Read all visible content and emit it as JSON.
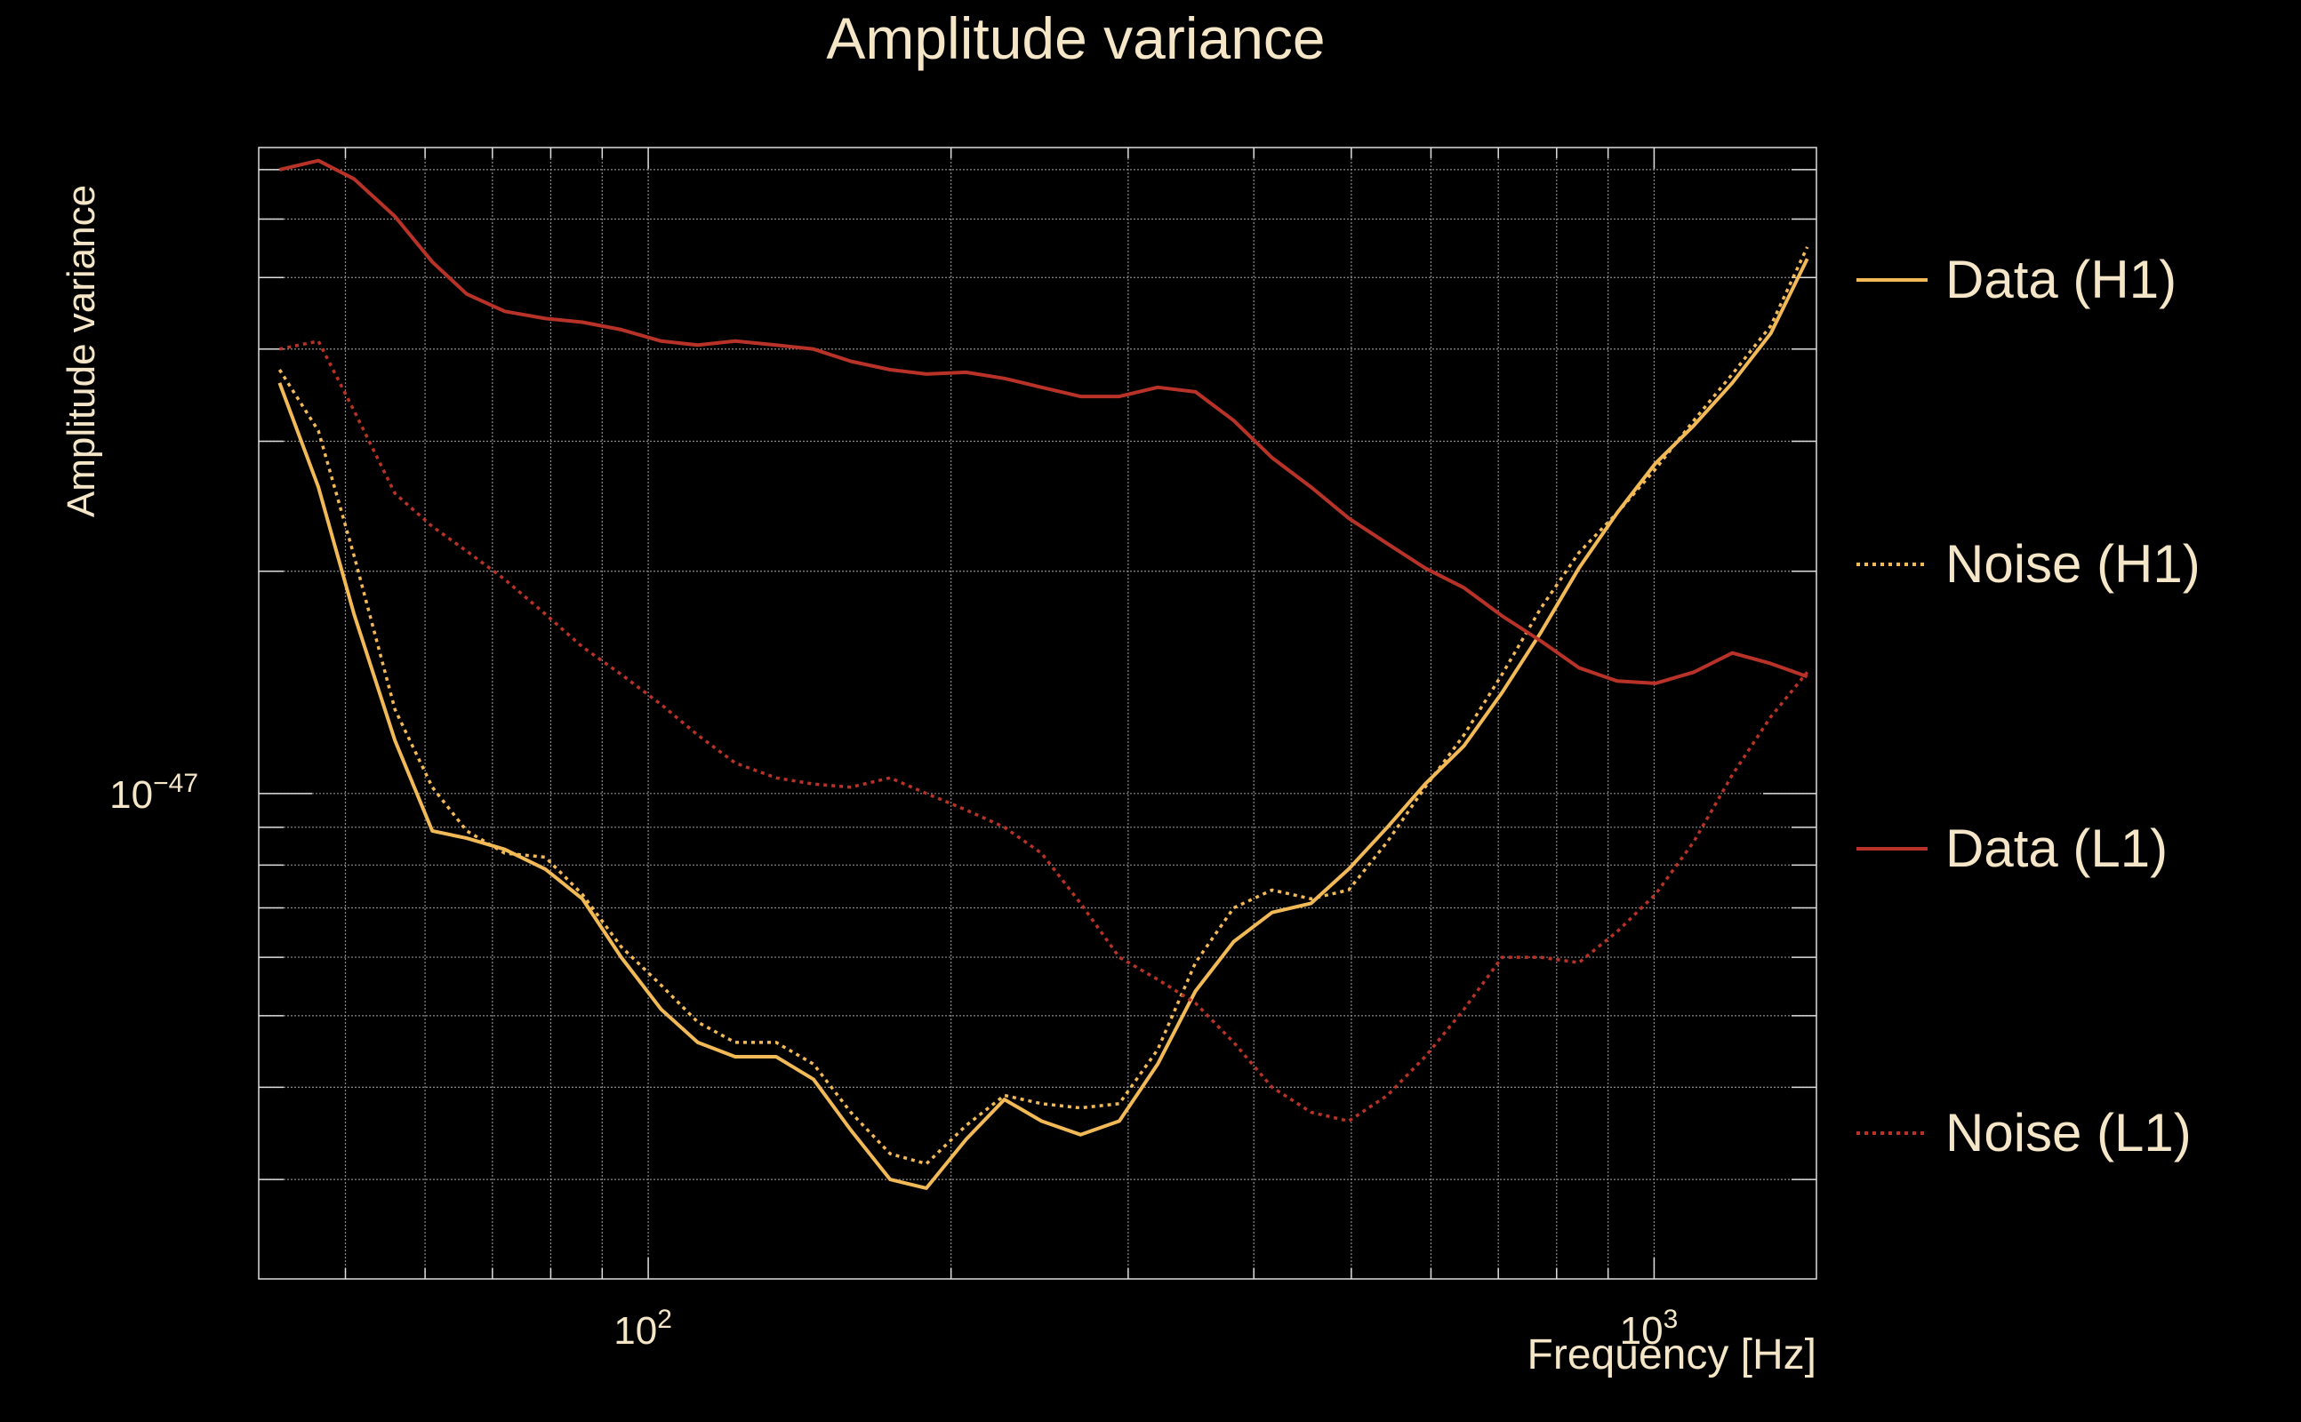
{
  "chart_data": {
    "type": "line",
    "title": "Amplitude variance",
    "xlabel": "Frequency [Hz]",
    "ylabel": "Amplitude variance",
    "x_scale": "log",
    "y_scale": "log",
    "xlim": [
      41,
      1450
    ],
    "ylim": [
      2.2e-48,
      7.5e-47
    ],
    "x_tick_labels": [
      {
        "value": 100,
        "base": "10",
        "exp": "2"
      },
      {
        "value": 1000,
        "base": "10",
        "exp": "3"
      }
    ],
    "y_tick_labels": [
      {
        "value": 1e-47,
        "base": "10",
        "exp": "−47"
      }
    ],
    "grid": true,
    "legend_position": "right",
    "x": [
      43,
      47,
      51,
      56,
      61,
      66,
      72,
      79,
      86,
      94,
      103,
      112,
      122,
      134,
      146,
      159,
      174,
      189,
      207,
      226,
      246,
      269,
      294,
      321,
      350,
      382,
      417,
      456,
      497,
      543,
      592,
      647,
      706,
      771,
      842,
      919,
      1003,
      1095,
      1196,
      1306,
      1420
    ],
    "series": [
      {
        "name": "Data (H1)",
        "color": "#f2b957",
        "dash": "solid",
        "values": [
          3.6e-47,
          2.6e-47,
          1.75e-47,
          1.18e-47,
          8.9e-48,
          8.7e-48,
          8.4e-48,
          7.9e-48,
          7.2e-48,
          6e-48,
          5.1e-48,
          4.6e-48,
          4.4e-48,
          4.4e-48,
          4.1e-48,
          3.5e-48,
          3e-48,
          2.92e-48,
          3.4e-48,
          3.85e-48,
          3.6e-48,
          3.45e-48,
          3.6e-48,
          4.3e-48,
          5.4e-48,
          6.3e-48,
          6.9e-48,
          7.1e-48,
          7.9e-48,
          9e-48,
          1.03e-47,
          1.16e-47,
          1.37e-47,
          1.65e-47,
          2.02e-47,
          2.4e-47,
          2.8e-47,
          3.15e-47,
          3.6e-47,
          4.2e-47,
          5.3e-47
        ],
        "legend_style": "solid"
      },
      {
        "name": "Noise (H1)",
        "color": "#f2b957",
        "dash": "dotted",
        "values": [
          3.75e-47,
          3.1e-47,
          2.1e-47,
          1.3e-47,
          1.02e-47,
          8.9e-48,
          8.3e-48,
          8.2e-48,
          7.3e-48,
          6.2e-48,
          5.5e-48,
          4.9e-48,
          4.6e-48,
          4.6e-48,
          4.3e-48,
          3.7e-48,
          3.25e-48,
          3.15e-48,
          3.55e-48,
          3.9e-48,
          3.8e-48,
          3.75e-48,
          3.8e-48,
          4.5e-48,
          5.9e-48,
          7e-48,
          7.4e-48,
          7.2e-48,
          7.4e-48,
          8.6e-48,
          1.02e-47,
          1.2e-47,
          1.45e-47,
          1.78e-47,
          2.12e-47,
          2.4e-47,
          2.75e-47,
          3.2e-47,
          3.7e-47,
          4.3e-47,
          5.5e-47
        ]
      },
      {
        "name": "Data (L1)",
        "color": "#b83228",
        "dash": "solid",
        "values": [
          7e-47,
          7.2e-47,
          6.8e-47,
          6.05e-47,
          5.25e-47,
          4.75e-47,
          4.5e-47,
          4.4e-47,
          4.35e-47,
          4.25e-47,
          4.1e-47,
          4.05e-47,
          4.1e-47,
          4.05e-47,
          4e-47,
          3.85e-47,
          3.75e-47,
          3.7e-47,
          3.72e-47,
          3.65e-47,
          3.55e-47,
          3.45e-47,
          3.45e-47,
          3.55e-47,
          3.5e-47,
          3.2e-47,
          2.85e-47,
          2.6e-47,
          2.36e-47,
          2.18e-47,
          2.02e-47,
          1.9e-47,
          1.74e-47,
          1.61e-47,
          1.48e-47,
          1.42e-47,
          1.41e-47,
          1.46e-47,
          1.55e-47,
          1.5e-47,
          1.44e-47
        ]
      },
      {
        "name": "Noise (L1)",
        "color": "#b83228",
        "dash": "dotted",
        "values": [
          4e-47,
          4.1e-47,
          3.3e-47,
          2.55e-47,
          2.3e-47,
          2.13e-47,
          1.95e-47,
          1.75e-47,
          1.58e-47,
          1.45e-47,
          1.32e-47,
          1.2e-47,
          1.1e-47,
          1.05e-47,
          1.03e-47,
          1.02e-47,
          1.05e-47,
          1e-47,
          9.5e-48,
          9e-48,
          8.3e-48,
          7.1e-48,
          6e-48,
          5.6e-48,
          5.2e-48,
          4.6e-48,
          4e-48,
          3.7e-48,
          3.6e-48,
          3.9e-48,
          4.4e-48,
          5.1e-48,
          6e-48,
          6e-48,
          5.9e-48,
          6.5e-48,
          7.3e-48,
          8.6e-48,
          1.06e-47,
          1.27e-47,
          1.46e-47
        ],
        "legend_style": "dotted"
      }
    ]
  }
}
